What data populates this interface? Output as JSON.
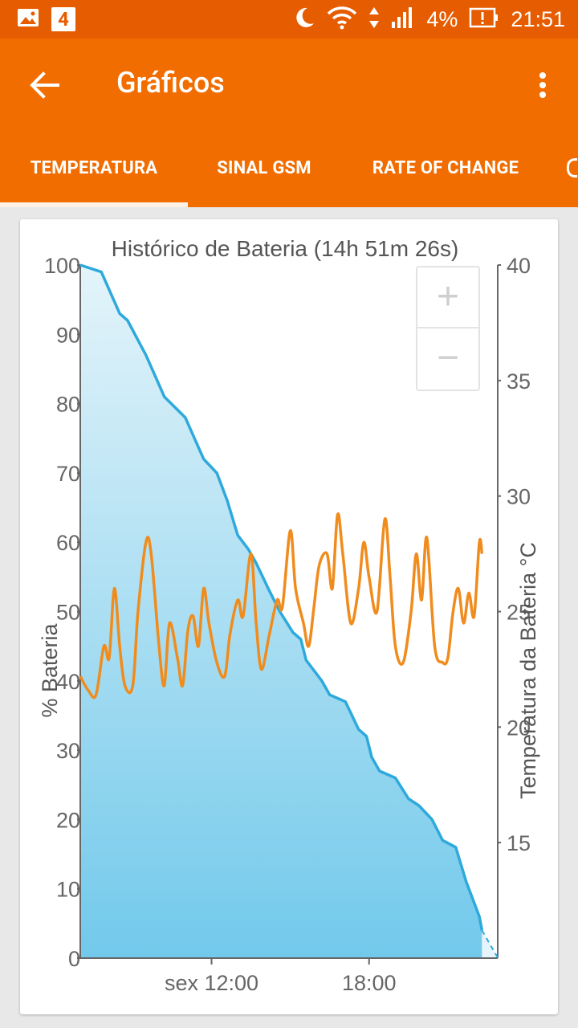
{
  "status_bar": {
    "notification_count": "4",
    "battery_percent": "4%",
    "time": "21:51"
  },
  "app_bar": {
    "title": "Gráficos"
  },
  "tabs": [
    {
      "label": "TEMPERATURA",
      "active": true
    },
    {
      "label": "SINAL GSM",
      "active": false
    },
    {
      "label": "RATE OF CHANGE",
      "active": false
    }
  ],
  "zoom": {
    "in": "+",
    "out": "−"
  },
  "chart_data": {
    "type": "area",
    "title": "Histórico de Bateria (14h 51m 26s)",
    "ylabel_left": "% Bateria",
    "ylabel_right": "Temperatura da Bateria °C",
    "ylim_left": [
      0,
      100
    ],
    "ylim_right": [
      10,
      40
    ],
    "left_ticks": [
      0,
      10,
      20,
      30,
      40,
      50,
      60,
      70,
      80,
      90,
      100
    ],
    "right_ticks": [
      15,
      20,
      25,
      30,
      35,
      40
    ],
    "x_ticks": [
      {
        "label": "sex 12:00",
        "hour": 12
      },
      {
        "label": "18:00",
        "hour": 18
      }
    ],
    "xlim": [
      7,
      22.9
    ],
    "colors": {
      "battery": "#2ea9dc",
      "temperature": "#f08c1e",
      "fill_top": "#e4f4fa",
      "fill_bottom": "#72c9eb"
    },
    "series": [
      {
        "axis": "left",
        "x": [
          7.0,
          7.8,
          8.5,
          8.8,
          9.5,
          10.2,
          11.0,
          11.7,
          12.2,
          12.6,
          13.0,
          13.4,
          13.7,
          14.2,
          14.6,
          15.1,
          15.4,
          15.6,
          16.2,
          16.5,
          17.1,
          17.6,
          17.9,
          18.1,
          18.4,
          19.0,
          19.5,
          19.9,
          20.4,
          20.8,
          21.3,
          21.7,
          21.9,
          22.2,
          22.3
        ],
        "y": [
          100,
          99,
          93,
          92,
          87,
          81,
          78,
          72,
          70,
          66,
          61,
          59,
          57,
          53,
          50,
          47,
          46,
          43,
          40,
          38,
          37,
          33,
          32,
          29,
          27,
          26,
          23,
          22,
          20,
          17,
          16,
          11,
          9,
          6,
          4
        ]
      },
      {
        "axis": "right",
        "x": [
          7.0,
          7.3,
          7.6,
          7.9,
          8.1,
          8.3,
          8.5,
          8.7,
          9.0,
          9.2,
          9.5,
          9.7,
          10.0,
          10.2,
          10.4,
          10.7,
          10.9,
          11.1,
          11.3,
          11.5,
          11.7,
          11.9,
          12.2,
          12.5,
          12.7,
          13.0,
          13.2,
          13.5,
          13.7,
          13.9,
          14.2,
          14.5,
          14.7,
          15.0,
          15.2,
          15.5,
          15.7,
          15.9,
          16.1,
          16.4,
          16.6,
          16.8,
          17.0,
          17.3,
          17.6,
          17.8,
          18.0,
          18.3,
          18.6,
          18.8,
          19.0,
          19.3,
          19.6,
          19.8,
          20.0,
          20.2,
          20.5,
          20.8,
          21.0,
          21.2,
          21.4,
          21.6,
          21.8,
          22.0,
          22.2,
          22.3
        ],
        "y": [
          22.2,
          21.6,
          21.4,
          23.5,
          23.0,
          26.0,
          23.5,
          21.8,
          21.8,
          25.0,
          28.0,
          27.5,
          23.5,
          21.8,
          24.5,
          23.0,
          21.8,
          24.2,
          24.8,
          23.5,
          26.0,
          24.5,
          22.8,
          22.2,
          24.0,
          25.5,
          24.8,
          27.5,
          24.5,
          22.5,
          24.0,
          25.5,
          25.2,
          28.5,
          26.0,
          24.5,
          23.5,
          25.2,
          27.0,
          27.5,
          26.0,
          29.2,
          27.5,
          24.5,
          26.0,
          28.0,
          26.5,
          25.0,
          29.0,
          26.5,
          23.5,
          22.8,
          25.0,
          27.5,
          25.5,
          28.2,
          23.5,
          22.8,
          23.0,
          25.0,
          26.0,
          24.5,
          25.8,
          24.8,
          28.0,
          27.5
        ]
      }
    ]
  }
}
